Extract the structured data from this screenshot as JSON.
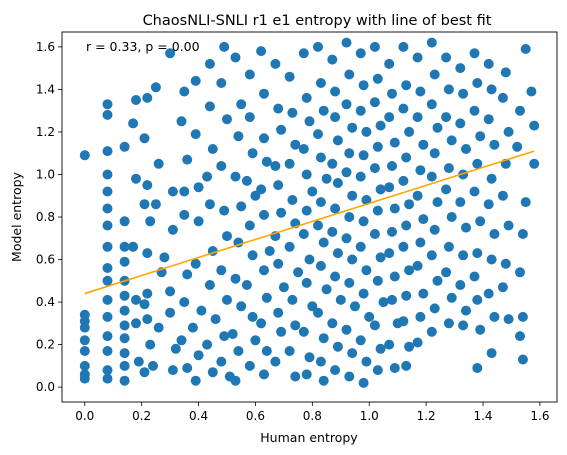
{
  "chart_data": {
    "type": "scatter",
    "title": "ChaosNLI-SNLI r1 e1 entropy with line of best fit",
    "xlabel": "Human entropy",
    "ylabel": "Model entropy",
    "annotation": "r = 0.33, p = 0.00",
    "xlim": [
      -0.08,
      1.66
    ],
    "ylim": [
      -0.07,
      1.67
    ],
    "xticks": [
      "0.0",
      "0.2",
      "0.4",
      "0.6",
      "0.8",
      "1.0",
      "1.2",
      "1.4",
      "1.6"
    ],
    "yticks": [
      "0.0",
      "0.2",
      "0.4",
      "0.6",
      "0.8",
      "1.0",
      "1.2",
      "1.4",
      "1.6"
    ],
    "grid": false,
    "point_color": "#1f77b4",
    "line_color": "#ffa500",
    "best_fit_line": {
      "x": [
        0.0,
        1.58
      ],
      "y": [
        0.44,
        1.11
      ]
    },
    "points_note": "dense scatter of roughly 1500 points; sampled representation",
    "points": [
      [
        0.0,
        1.09
      ],
      [
        0.0,
        0.34
      ],
      [
        0.0,
        0.31
      ],
      [
        0.0,
        0.28
      ],
      [
        0.0,
        0.22
      ],
      [
        0.0,
        0.17
      ],
      [
        0.0,
        0.1
      ],
      [
        0.0,
        0.06
      ],
      [
        0.0,
        0.04
      ],
      [
        0.08,
        1.33
      ],
      [
        0.08,
        1.28
      ],
      [
        0.08,
        1.11
      ],
      [
        0.08,
        1.0
      ],
      [
        0.08,
        0.92
      ],
      [
        0.08,
        0.84
      ],
      [
        0.08,
        0.76
      ],
      [
        0.08,
        0.66
      ],
      [
        0.08,
        0.56
      ],
      [
        0.08,
        0.5
      ],
      [
        0.08,
        0.41
      ],
      [
        0.08,
        0.33
      ],
      [
        0.08,
        0.24
      ],
      [
        0.08,
        0.17
      ],
      [
        0.08,
        0.08
      ],
      [
        0.08,
        0.04
      ],
      [
        0.14,
        1.13
      ],
      [
        0.14,
        0.78
      ],
      [
        0.14,
        0.66
      ],
      [
        0.14,
        0.59
      ],
      [
        0.14,
        0.5
      ],
      [
        0.14,
        0.43
      ],
      [
        0.14,
        0.36
      ],
      [
        0.14,
        0.29
      ],
      [
        0.14,
        0.23
      ],
      [
        0.14,
        0.16
      ],
      [
        0.14,
        0.1
      ],
      [
        0.14,
        0.03
      ],
      [
        0.18,
        1.35
      ],
      [
        0.17,
        1.24
      ],
      [
        0.18,
        0.98
      ],
      [
        0.17,
        0.66
      ],
      [
        0.18,
        0.41
      ],
      [
        0.18,
        0.3
      ],
      [
        0.19,
        0.12
      ],
      [
        0.21,
        1.17
      ],
      [
        0.22,
        1.36
      ],
      [
        0.22,
        0.95
      ],
      [
        0.21,
        0.86
      ],
      [
        0.23,
        0.78
      ],
      [
        0.22,
        0.63
      ],
      [
        0.22,
        0.44
      ],
      [
        0.21,
        0.39
      ],
      [
        0.22,
        0.32
      ],
      [
        0.23,
        0.2
      ],
      [
        0.21,
        0.07
      ],
      [
        0.25,
        1.41
      ],
      [
        0.26,
        1.05
      ],
      [
        0.25,
        0.86
      ],
      [
        0.27,
        0.54
      ],
      [
        0.26,
        0.28
      ],
      [
        0.24,
        0.1
      ],
      [
        0.28,
        0.61
      ],
      [
        0.3,
        1.57
      ],
      [
        0.31,
        0.92
      ],
      [
        0.31,
        0.74
      ],
      [
        0.3,
        0.45
      ],
      [
        0.3,
        0.35
      ],
      [
        0.32,
        0.18
      ],
      [
        0.31,
        0.08
      ],
      [
        0.35,
        1.39
      ],
      [
        0.34,
        1.25
      ],
      [
        0.36,
        1.07
      ],
      [
        0.35,
        0.92
      ],
      [
        0.35,
        0.81
      ],
      [
        0.36,
        0.53
      ],
      [
        0.35,
        0.4
      ],
      [
        0.34,
        0.22
      ],
      [
        0.36,
        0.09
      ],
      [
        0.39,
        1.44
      ],
      [
        0.39,
        1.19
      ],
      [
        0.4,
        0.94
      ],
      [
        0.4,
        0.78
      ],
      [
        0.39,
        0.58
      ],
      [
        0.41,
        0.36
      ],
      [
        0.38,
        0.28
      ],
      [
        0.4,
        0.15
      ],
      [
        0.39,
        0.03
      ],
      [
        0.44,
        1.52
      ],
      [
        0.44,
        1.32
      ],
      [
        0.45,
        1.12
      ],
      [
        0.43,
        0.99
      ],
      [
        0.44,
        0.86
      ],
      [
        0.45,
        0.64
      ],
      [
        0.44,
        0.48
      ],
      [
        0.46,
        0.32
      ],
      [
        0.43,
        0.2
      ],
      [
        0.45,
        0.07
      ],
      [
        0.49,
        1.6
      ],
      [
        0.48,
        1.43
      ],
      [
        0.5,
        1.26
      ],
      [
        0.48,
        1.04
      ],
      [
        0.49,
        0.83
      ],
      [
        0.5,
        0.71
      ],
      [
        0.48,
        0.55
      ],
      [
        0.5,
        0.41
      ],
      [
        0.49,
        0.24
      ],
      [
        0.48,
        0.12
      ],
      [
        0.51,
        0.05
      ],
      [
        0.53,
        1.55
      ],
      [
        0.55,
        1.33
      ],
      [
        0.54,
        1.18
      ],
      [
        0.53,
        0.99
      ],
      [
        0.55,
        0.85
      ],
      [
        0.54,
        0.68
      ],
      [
        0.53,
        0.51
      ],
      [
        0.55,
        0.38
      ],
      [
        0.52,
        0.25
      ],
      [
        0.54,
        0.17
      ],
      [
        0.53,
        0.03
      ],
      [
        0.58,
        1.47
      ],
      [
        0.58,
        1.27
      ],
      [
        0.59,
        1.1
      ],
      [
        0.57,
        0.97
      ],
      [
        0.6,
        0.9
      ],
      [
        0.58,
        0.76
      ],
      [
        0.59,
        0.62
      ],
      [
        0.57,
        0.48
      ],
      [
        0.59,
        0.33
      ],
      [
        0.6,
        0.22
      ],
      [
        0.58,
        0.1
      ],
      [
        0.62,
        1.58
      ],
      [
        0.63,
        1.38
      ],
      [
        0.63,
        1.17
      ],
      [
        0.64,
        1.06
      ],
      [
        0.62,
        0.93
      ],
      [
        0.63,
        0.81
      ],
      [
        0.65,
        0.64
      ],
      [
        0.63,
        0.55
      ],
      [
        0.64,
        0.42
      ],
      [
        0.62,
        0.3
      ],
      [
        0.64,
        0.17
      ],
      [
        0.63,
        0.06
      ],
      [
        0.67,
        1.52
      ],
      [
        0.68,
        1.31
      ],
      [
        0.69,
        1.21
      ],
      [
        0.67,
        1.04
      ],
      [
        0.68,
        0.95
      ],
      [
        0.69,
        0.82
      ],
      [
        0.67,
        0.71
      ],
      [
        0.68,
        0.58
      ],
      [
        0.7,
        0.47
      ],
      [
        0.68,
        0.35
      ],
      [
        0.69,
        0.26
      ],
      [
        0.67,
        0.12
      ],
      [
        0.72,
        1.46
      ],
      [
        0.73,
        1.29
      ],
      [
        0.74,
        1.14
      ],
      [
        0.72,
        1.05
      ],
      [
        0.73,
        0.88
      ],
      [
        0.74,
        0.77
      ],
      [
        0.72,
        0.66
      ],
      [
        0.75,
        0.54
      ],
      [
        0.73,
        0.41
      ],
      [
        0.74,
        0.29
      ],
      [
        0.72,
        0.17
      ],
      [
        0.74,
        0.05
      ],
      [
        0.77,
        1.57
      ],
      [
        0.78,
        1.36
      ],
      [
        0.79,
        1.25
      ],
      [
        0.77,
        1.12
      ],
      [
        0.78,
        1.0
      ],
      [
        0.8,
        0.92
      ],
      [
        0.78,
        0.83
      ],
      [
        0.77,
        0.72
      ],
      [
        0.79,
        0.6
      ],
      [
        0.78,
        0.49
      ],
      [
        0.8,
        0.38
      ],
      [
        0.77,
        0.26
      ],
      [
        0.79,
        0.14
      ],
      [
        0.78,
        0.06
      ],
      [
        0.82,
        1.6
      ],
      [
        0.83,
        1.43
      ],
      [
        0.84,
        1.3
      ],
      [
        0.82,
        1.19
      ],
      [
        0.83,
        1.08
      ],
      [
        0.85,
        0.98
      ],
      [
        0.83,
        0.87
      ],
      [
        0.82,
        0.76
      ],
      [
        0.84,
        0.68
      ],
      [
        0.83,
        0.57
      ],
      [
        0.85,
        0.46
      ],
      [
        0.82,
        0.35
      ],
      [
        0.84,
        0.23
      ],
      [
        0.83,
        0.12
      ],
      [
        0.84,
        0.03
      ],
      [
        0.87,
        1.54
      ],
      [
        0.88,
        1.39
      ],
      [
        0.88,
        1.27
      ],
      [
        0.89,
        1.16
      ],
      [
        0.87,
        1.05
      ],
      [
        0.89,
        0.96
      ],
      [
        0.88,
        0.84
      ],
      [
        0.87,
        0.73
      ],
      [
        0.89,
        0.63
      ],
      [
        0.88,
        0.52
      ],
      [
        0.9,
        0.41
      ],
      [
        0.87,
        0.3
      ],
      [
        0.89,
        0.19
      ],
      [
        0.88,
        0.08
      ],
      [
        0.92,
        1.62
      ],
      [
        0.93,
        1.47
      ],
      [
        0.92,
        1.33
      ],
      [
        0.94,
        1.22
      ],
      [
        0.93,
        1.1
      ],
      [
        0.92,
        1.01
      ],
      [
        0.94,
        0.9
      ],
      [
        0.93,
        0.8
      ],
      [
        0.92,
        0.7
      ],
      [
        0.94,
        0.6
      ],
      [
        0.93,
        0.49
      ],
      [
        0.95,
        0.38
      ],
      [
        0.92,
        0.27
      ],
      [
        0.94,
        0.16
      ],
      [
        0.93,
        0.05
      ],
      [
        0.97,
        1.57
      ],
      [
        0.98,
        1.42
      ],
      [
        0.97,
        1.3
      ],
      [
        0.99,
        1.2
      ],
      [
        0.98,
        1.09
      ],
      [
        0.97,
        0.99
      ],
      [
        0.99,
        0.88
      ],
      [
        0.98,
        0.78
      ],
      [
        0.97,
        0.66
      ],
      [
        0.99,
        0.55
      ],
      [
        0.98,
        0.44
      ],
      [
        1.0,
        0.33
      ],
      [
        0.97,
        0.22
      ],
      [
        0.99,
        0.12
      ],
      [
        0.98,
        0.02
      ],
      [
        1.02,
        1.6
      ],
      [
        1.03,
        1.45
      ],
      [
        1.02,
        1.34
      ],
      [
        1.04,
        1.23
      ],
      [
        1.03,
        1.13
      ],
      [
        1.02,
        1.03
      ],
      [
        1.04,
        0.93
      ],
      [
        1.03,
        0.83
      ],
      [
        1.02,
        0.72
      ],
      [
        1.04,
        0.61
      ],
      [
        1.03,
        0.5
      ],
      [
        1.05,
        0.4
      ],
      [
        1.02,
        0.29
      ],
      [
        1.04,
        0.18
      ],
      [
        1.03,
        0.08
      ],
      [
        1.07,
        1.52
      ],
      [
        1.08,
        1.38
      ],
      [
        1.07,
        1.27
      ],
      [
        1.09,
        1.15
      ],
      [
        1.08,
        1.04
      ],
      [
        1.07,
        0.94
      ],
      [
        1.09,
        0.84
      ],
      [
        1.08,
        0.73
      ],
      [
        1.07,
        0.63
      ],
      [
        1.09,
        0.52
      ],
      [
        1.08,
        0.41
      ],
      [
        1.1,
        0.3
      ],
      [
        1.07,
        0.2
      ],
      [
        1.09,
        0.09
      ],
      [
        1.12,
        1.6
      ],
      [
        1.13,
        1.42
      ],
      [
        1.12,
        1.31
      ],
      [
        1.14,
        1.2
      ],
      [
        1.13,
        1.08
      ],
      [
        1.12,
        0.97
      ],
      [
        1.14,
        0.86
      ],
      [
        1.13,
        0.76
      ],
      [
        1.12,
        0.66
      ],
      [
        1.14,
        0.55
      ],
      [
        1.13,
        0.43
      ],
      [
        1.12,
        0.31
      ],
      [
        1.14,
        0.19
      ],
      [
        1.13,
        0.1
      ],
      [
        1.17,
        1.55
      ],
      [
        1.18,
        1.39
      ],
      [
        1.17,
        1.27
      ],
      [
        1.19,
        1.14
      ],
      [
        1.18,
        1.02
      ],
      [
        1.17,
        0.9
      ],
      [
        1.19,
        0.79
      ],
      [
        1.18,
        0.68
      ],
      [
        1.17,
        0.57
      ],
      [
        1.19,
        0.44
      ],
      [
        1.18,
        0.33
      ],
      [
        1.17,
        0.21
      ],
      [
        1.22,
        1.62
      ],
      [
        1.23,
        1.47
      ],
      [
        1.22,
        1.33
      ],
      [
        1.24,
        1.22
      ],
      [
        1.23,
        1.1
      ],
      [
        1.22,
        0.99
      ],
      [
        1.24,
        0.87
      ],
      [
        1.23,
        0.74
      ],
      [
        1.22,
        0.62
      ],
      [
        1.24,
        0.5
      ],
      [
        1.23,
        0.37
      ],
      [
        1.22,
        0.26
      ],
      [
        1.27,
        1.55
      ],
      [
        1.28,
        1.4
      ],
      [
        1.27,
        1.27
      ],
      [
        1.29,
        1.16
      ],
      [
        1.28,
        1.03
      ],
      [
        1.27,
        0.93
      ],
      [
        1.29,
        0.8
      ],
      [
        1.28,
        0.66
      ],
      [
        1.27,
        0.54
      ],
      [
        1.29,
        0.42
      ],
      [
        1.28,
        0.3
      ],
      [
        1.32,
        1.5
      ],
      [
        1.33,
        1.38
      ],
      [
        1.32,
        1.24
      ],
      [
        1.34,
        1.12
      ],
      [
        1.33,
        1.0
      ],
      [
        1.32,
        0.87
      ],
      [
        1.34,
        0.75
      ],
      [
        1.33,
        0.62
      ],
      [
        1.32,
        0.48
      ],
      [
        1.34,
        0.36
      ],
      [
        1.33,
        0.29
      ],
      [
        1.37,
        1.57
      ],
      [
        1.38,
        1.43
      ],
      [
        1.37,
        1.3
      ],
      [
        1.39,
        1.18
      ],
      [
        1.38,
        1.05
      ],
      [
        1.37,
        0.92
      ],
      [
        1.39,
        0.78
      ],
      [
        1.38,
        0.63
      ],
      [
        1.37,
        0.52
      ],
      [
        1.38,
        0.41
      ],
      [
        1.39,
        0.27
      ],
      [
        1.38,
        0.09
      ],
      [
        1.42,
        1.52
      ],
      [
        1.43,
        1.4
      ],
      [
        1.42,
        1.26
      ],
      [
        1.44,
        1.14
      ],
      [
        1.43,
        0.98
      ],
      [
        1.42,
        0.86
      ],
      [
        1.44,
        0.72
      ],
      [
        1.43,
        0.6
      ],
      [
        1.42,
        0.44
      ],
      [
        1.44,
        0.33
      ],
      [
        1.43,
        0.16
      ],
      [
        1.48,
        1.48
      ],
      [
        1.47,
        1.36
      ],
      [
        1.49,
        1.2
      ],
      [
        1.48,
        1.05
      ],
      [
        1.47,
        0.9
      ],
      [
        1.49,
        0.76
      ],
      [
        1.48,
        0.58
      ],
      [
        1.47,
        0.47
      ],
      [
        1.49,
        0.32
      ],
      [
        1.53,
        1.3
      ],
      [
        1.52,
        1.13
      ],
      [
        1.54,
        0.72
      ],
      [
        1.53,
        0.54
      ],
      [
        1.54,
        0.33
      ],
      [
        1.53,
        0.24
      ],
      [
        1.54,
        0.13
      ],
      [
        1.55,
        1.59
      ],
      [
        1.55,
        0.87
      ],
      [
        1.57,
        1.39
      ],
      [
        1.58,
        1.23
      ],
      [
        1.58,
        1.05
      ]
    ]
  }
}
